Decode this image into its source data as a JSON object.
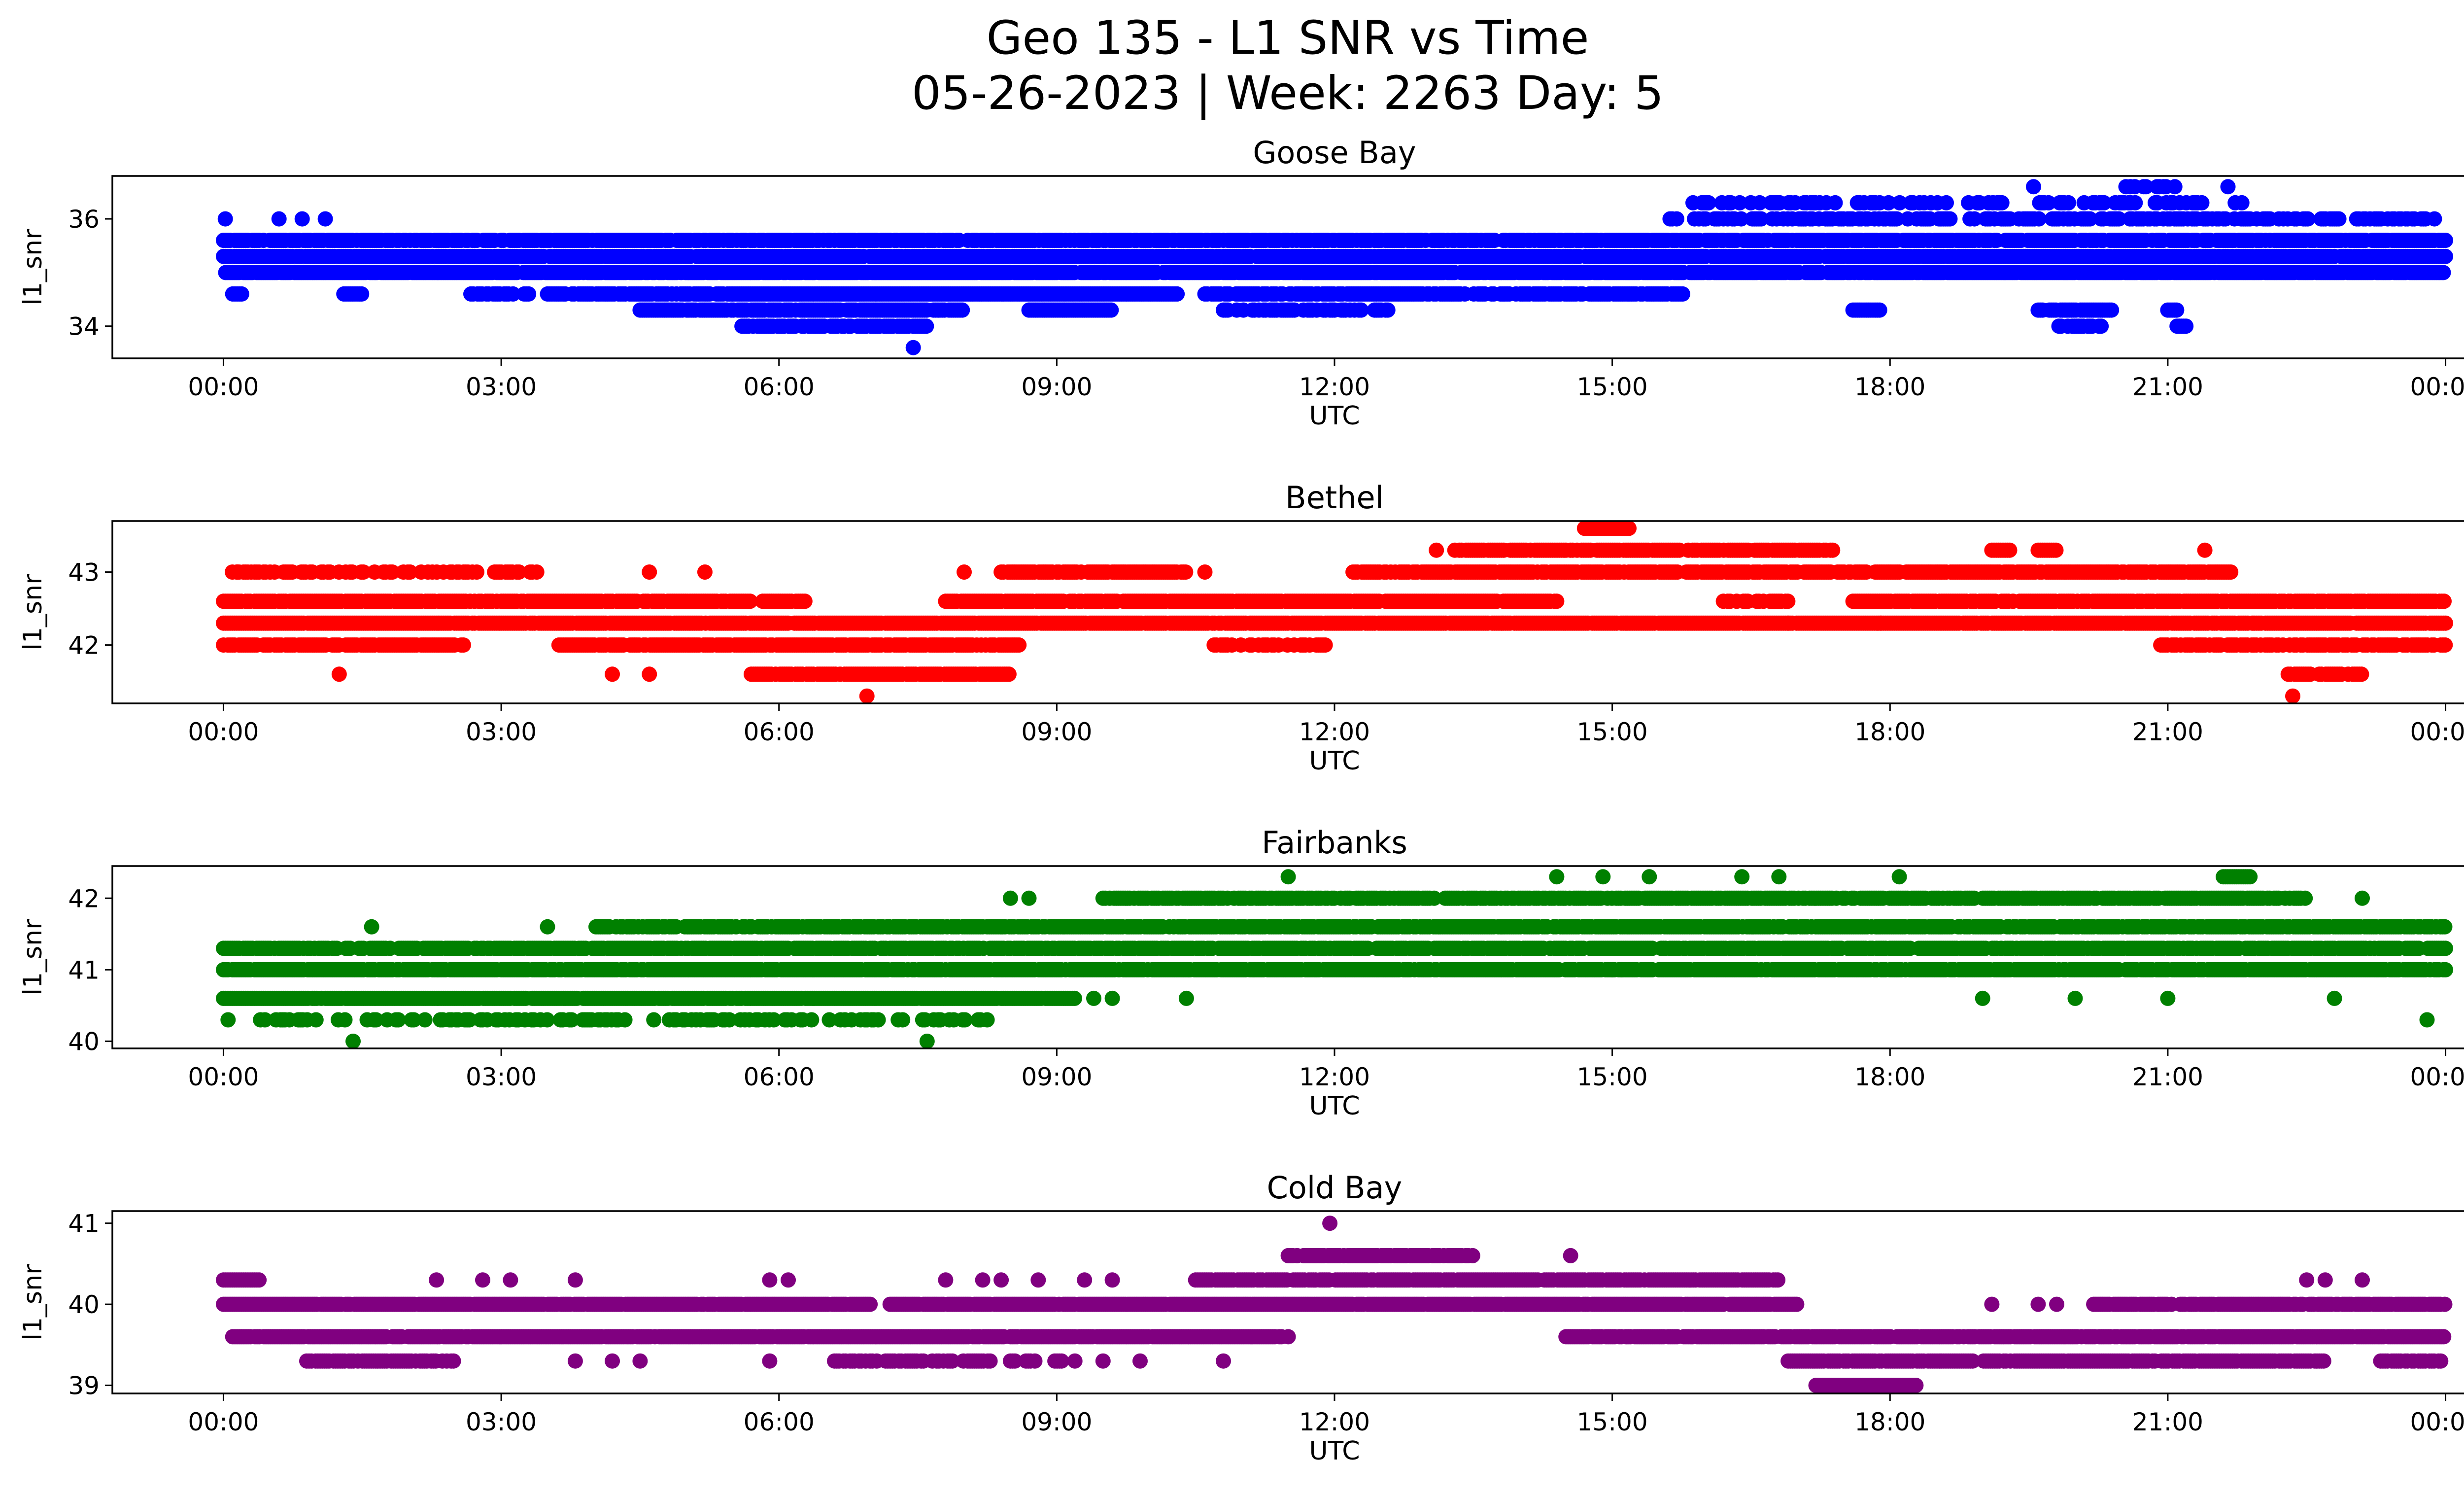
{
  "figure": {
    "title_line1": "Geo 135 - L1 SNR vs Time",
    "title_line2": "05-26-2023 | Week: 2263 Day: 5"
  },
  "chart_data": [
    {
      "type": "scatter",
      "title": "Goose Bay",
      "xlabel": "UTC",
      "ylabel": "l1_snr",
      "color": "#0000ff",
      "x_ticks": [
        "00:00",
        "03:00",
        "06:00",
        "09:00",
        "12:00",
        "15:00",
        "18:00",
        "21:00",
        "00:00"
      ],
      "xlim_hours": [
        -1.2,
        25.2
      ],
      "y_ticks": [
        34,
        36
      ],
      "ylim": [
        33.4,
        36.8
      ],
      "levels": [
        33.6,
        34.0,
        34.3,
        34.6,
        35.0,
        35.3,
        35.6,
        36.0,
        36.3,
        36.6
      ],
      "segments": [
        {
          "y": 35.6,
          "from": 0.0,
          "to": 24.0,
          "fill": 0.82
        },
        {
          "y": 35.3,
          "from": 0.0,
          "to": 24.0,
          "fill": 0.9
        },
        {
          "y": 35.0,
          "from": 0.0,
          "to": 24.0,
          "fill": 0.9
        },
        {
          "y": 34.6,
          "from": 0.1,
          "to": 0.2,
          "fill": 1.0
        },
        {
          "y": 34.6,
          "from": 1.3,
          "to": 1.5,
          "fill": 1.0
        },
        {
          "y": 34.6,
          "from": 2.6,
          "to": 3.3,
          "fill": 0.5
        },
        {
          "y": 34.6,
          "from": 3.5,
          "to": 5.5,
          "fill": 0.8
        },
        {
          "y": 34.6,
          "from": 5.5,
          "to": 10.3,
          "fill": 1.0
        },
        {
          "y": 34.6,
          "from": 10.6,
          "to": 15.8,
          "fill": 0.8
        },
        {
          "y": 34.3,
          "from": 4.5,
          "to": 8.0,
          "fill": 0.9
        },
        {
          "y": 34.3,
          "from": 8.7,
          "to": 9.6,
          "fill": 1.0
        },
        {
          "y": 34.3,
          "from": 10.8,
          "to": 12.6,
          "fill": 0.6
        },
        {
          "y": 34.3,
          "from": 17.6,
          "to": 17.9,
          "fill": 1.0
        },
        {
          "y": 34.3,
          "from": 19.6,
          "to": 20.4,
          "fill": 0.9
        },
        {
          "y": 34.3,
          "from": 21.0,
          "to": 21.1,
          "fill": 1.0
        },
        {
          "y": 34.0,
          "from": 5.6,
          "to": 7.6,
          "fill": 0.8
        },
        {
          "y": 34.0,
          "from": 19.8,
          "to": 20.3,
          "fill": 0.6
        },
        {
          "y": 34.0,
          "from": 21.1,
          "to": 21.2,
          "fill": 1.0
        },
        {
          "y": 36.0,
          "from": 15.6,
          "to": 23.9,
          "fill": 0.55
        },
        {
          "y": 36.3,
          "from": 15.8,
          "to": 21.8,
          "fill": 0.35
        },
        {
          "y": 36.6,
          "from": 20.5,
          "to": 21.1,
          "fill": 0.45
        }
      ],
      "points": [
        [
          0.02,
          36.0
        ],
        [
          0.6,
          36.0
        ],
        [
          0.85,
          36.0
        ],
        [
          1.1,
          36.0
        ],
        [
          7.45,
          33.6
        ],
        [
          19.55,
          36.6
        ],
        [
          21.65,
          36.6
        ]
      ]
    },
    {
      "type": "scatter",
      "title": "Bethel",
      "xlabel": "UTC",
      "ylabel": "l1_snr",
      "color": "#ff0000",
      "x_ticks": [
        "00:00",
        "03:00",
        "06:00",
        "09:00",
        "12:00",
        "15:00",
        "18:00",
        "21:00",
        "00:00"
      ],
      "xlim_hours": [
        -1.2,
        25.2
      ],
      "y_ticks": [
        42,
        43
      ],
      "ylim": [
        41.2,
        43.7
      ],
      "levels": [
        41.3,
        41.6,
        42.0,
        42.3,
        42.6,
        43.0,
        43.3,
        43.6
      ],
      "segments": [
        {
          "y": 42.6,
          "from": 0.0,
          "to": 5.7,
          "fill": 0.9
        },
        {
          "y": 42.6,
          "from": 5.8,
          "to": 6.3,
          "fill": 0.8
        },
        {
          "y": 42.6,
          "from": 7.8,
          "to": 14.4,
          "fill": 0.95
        },
        {
          "y": 42.6,
          "from": 16.2,
          "to": 16.9,
          "fill": 0.6
        },
        {
          "y": 42.6,
          "from": 17.6,
          "to": 24.0,
          "fill": 0.9
        },
        {
          "y": 42.3,
          "from": 0.0,
          "to": 24.0,
          "fill": 0.95
        },
        {
          "y": 42.0,
          "from": 0.0,
          "to": 2.6,
          "fill": 0.85
        },
        {
          "y": 42.0,
          "from": 3.6,
          "to": 8.6,
          "fill": 0.9
        },
        {
          "y": 42.0,
          "from": 10.7,
          "to": 11.9,
          "fill": 0.6
        },
        {
          "y": 42.0,
          "from": 20.9,
          "to": 24.0,
          "fill": 0.75
        },
        {
          "y": 43.0,
          "from": 0.0,
          "to": 3.4,
          "fill": 0.6
        },
        {
          "y": 43.0,
          "from": 8.4,
          "to": 10.4,
          "fill": 0.85
        },
        {
          "y": 43.0,
          "from": 12.2,
          "to": 21.7,
          "fill": 0.9
        },
        {
          "y": 43.3,
          "from": 13.3,
          "to": 17.4,
          "fill": 0.9
        },
        {
          "y": 43.3,
          "from": 19.1,
          "to": 19.3,
          "fill": 1.0
        },
        {
          "y": 43.3,
          "from": 19.6,
          "to": 19.8,
          "fill": 1.0
        },
        {
          "y": 43.6,
          "from": 14.7,
          "to": 15.2,
          "fill": 1.0
        },
        {
          "y": 41.6,
          "from": 5.7,
          "to": 8.5,
          "fill": 0.9
        },
        {
          "y": 41.6,
          "from": 22.3,
          "to": 23.1,
          "fill": 0.8
        }
      ],
      "points": [
        [
          0.15,
          43.0
        ],
        [
          0.3,
          43.0
        ],
        [
          4.6,
          43.0
        ],
        [
          5.2,
          43.0
        ],
        [
          8.0,
          43.0
        ],
        [
          10.6,
          43.0
        ],
        [
          13.1,
          43.3
        ],
        [
          1.25,
          41.6
        ],
        [
          4.2,
          41.6
        ],
        [
          4.6,
          41.6
        ],
        [
          6.95,
          41.3
        ],
        [
          22.35,
          41.3
        ],
        [
          21.4,
          43.3
        ],
        [
          17.9,
          42.3
        ],
        [
          16.9,
          42.3
        ]
      ]
    },
    {
      "type": "scatter",
      "title": "Fairbanks",
      "xlabel": "UTC",
      "ylabel": "l1_snr",
      "color": "#008000",
      "x_ticks": [
        "00:00",
        "03:00",
        "06:00",
        "09:00",
        "12:00",
        "15:00",
        "18:00",
        "21:00",
        "00:00"
      ],
      "xlim_hours": [
        -1.2,
        25.2
      ],
      "y_ticks": [
        40,
        41,
        42
      ],
      "ylim": [
        39.9,
        42.45
      ],
      "levels": [
        40.0,
        40.3,
        40.6,
        41.0,
        41.3,
        41.6,
        42.0,
        42.3
      ],
      "segments": [
        {
          "y": 41.0,
          "from": 0.0,
          "to": 24.0,
          "fill": 0.9
        },
        {
          "y": 40.6,
          "from": 0.0,
          "to": 9.2,
          "fill": 0.95
        },
        {
          "y": 40.3,
          "from": 0.4,
          "to": 8.3,
          "fill": 0.35
        },
        {
          "y": 41.3,
          "from": 0.0,
          "to": 24.0,
          "fill": 0.85
        },
        {
          "y": 41.6,
          "from": 4.0,
          "to": 24.0,
          "fill": 0.85
        },
        {
          "y": 42.0,
          "from": 9.5,
          "to": 22.5,
          "fill": 0.8
        },
        {
          "y": 42.3,
          "from": 21.6,
          "to": 21.9,
          "fill": 1.0
        }
      ],
      "points": [
        [
          0.05,
          40.3
        ],
        [
          1.4,
          40.0
        ],
        [
          7.6,
          40.0
        ],
        [
          1.6,
          41.6
        ],
        [
          3.5,
          41.6
        ],
        [
          8.7,
          42.0
        ],
        [
          8.5,
          42.0
        ],
        [
          11.5,
          42.3
        ],
        [
          14.4,
          42.3
        ],
        [
          14.9,
          42.3
        ],
        [
          15.4,
          42.3
        ],
        [
          16.4,
          42.3
        ],
        [
          16.8,
          42.3
        ],
        [
          18.1,
          42.3
        ],
        [
          19.0,
          40.6
        ],
        [
          20.0,
          40.6
        ],
        [
          21.0,
          40.6
        ],
        [
          22.8,
          40.6
        ],
        [
          23.8,
          40.3
        ],
        [
          9.4,
          40.6
        ],
        [
          9.6,
          40.6
        ],
        [
          10.4,
          40.6
        ],
        [
          23.1,
          42.0
        ],
        [
          15.0,
          41.0
        ],
        [
          15.1,
          41.0
        ]
      ]
    },
    {
      "type": "scatter",
      "title": "Cold Bay",
      "xlabel": "UTC",
      "ylabel": "l1_snr",
      "color": "#800080",
      "x_ticks": [
        "00:00",
        "03:00",
        "06:00",
        "09:00",
        "12:00",
        "15:00",
        "18:00",
        "21:00",
        "00:00"
      ],
      "xlim_hours": [
        -1.2,
        25.2
      ],
      "y_ticks": [
        39,
        40,
        41
      ],
      "ylim": [
        38.9,
        41.15
      ],
      "levels": [
        39.0,
        39.3,
        39.6,
        40.0,
        40.3,
        40.6,
        41.0
      ],
      "segments": [
        {
          "y": 40.0,
          "from": 0.0,
          "to": 7.0,
          "fill": 0.95
        },
        {
          "y": 40.0,
          "from": 7.2,
          "to": 17.0,
          "fill": 0.95
        },
        {
          "y": 40.0,
          "from": 20.2,
          "to": 24.0,
          "fill": 0.85
        },
        {
          "y": 39.6,
          "from": 0.1,
          "to": 11.5,
          "fill": 0.95
        },
        {
          "y": 39.6,
          "from": 14.5,
          "to": 24.0,
          "fill": 0.9
        },
        {
          "y": 39.3,
          "from": 0.9,
          "to": 2.5,
          "fill": 0.8
        },
        {
          "y": 39.3,
          "from": 6.6,
          "to": 8.3,
          "fill": 0.7
        },
        {
          "y": 39.3,
          "from": 8.5,
          "to": 9.2,
          "fill": 0.6
        },
        {
          "y": 39.3,
          "from": 16.9,
          "to": 22.7,
          "fill": 0.9
        },
        {
          "y": 39.3,
          "from": 23.3,
          "to": 24.0,
          "fill": 0.75
        },
        {
          "y": 40.3,
          "from": 0.0,
          "to": 0.4,
          "fill": 1.0
        },
        {
          "y": 40.3,
          "from": 10.5,
          "to": 16.8,
          "fill": 0.85
        },
        {
          "y": 40.6,
          "from": 11.5,
          "to": 13.5,
          "fill": 0.9
        },
        {
          "y": 39.0,
          "from": 17.2,
          "to": 18.3,
          "fill": 1.0
        }
      ],
      "points": [
        [
          11.95,
          41.0
        ],
        [
          14.55,
          40.6
        ],
        [
          2.3,
          40.3
        ],
        [
          2.8,
          40.3
        ],
        [
          3.1,
          40.3
        ],
        [
          3.8,
          40.3
        ],
        [
          5.9,
          40.3
        ],
        [
          6.1,
          40.3
        ],
        [
          7.8,
          40.3
        ],
        [
          8.2,
          40.3
        ],
        [
          8.4,
          40.3
        ],
        [
          8.8,
          40.3
        ],
        [
          9.3,
          40.3
        ],
        [
          9.6,
          40.3
        ],
        [
          22.5,
          40.3
        ],
        [
          22.7,
          40.3
        ],
        [
          23.1,
          40.3
        ],
        [
          3.8,
          39.3
        ],
        [
          4.2,
          39.3
        ],
        [
          4.5,
          39.3
        ],
        [
          5.9,
          39.3
        ],
        [
          9.5,
          39.3
        ],
        [
          9.9,
          39.3
        ],
        [
          10.8,
          39.3
        ],
        [
          19.1,
          40.0
        ],
        [
          19.6,
          40.0
        ],
        [
          19.8,
          40.0
        ]
      ]
    }
  ]
}
